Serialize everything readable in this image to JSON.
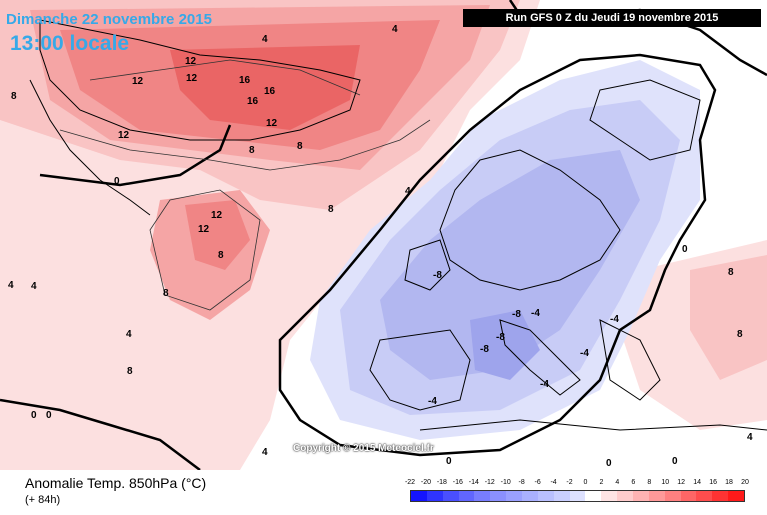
{
  "header": {
    "date_text": "Dimanche 22 novembre 2015",
    "time_text": "13:00 locale",
    "run_text": "Run GFS 0 Z du Jeudi 19 novembre 2015"
  },
  "copyright": "Copyright © 2015 Meteociel.fr",
  "footer": {
    "parameter_title": "Anomalie Temp. 850hPa (°C)",
    "forecast_hour": "(+ 84h)"
  },
  "legend": {
    "labels": [
      "-22",
      "-20",
      "-18",
      "-16",
      "-14",
      "-12",
      "-10",
      "-8",
      "-6",
      "-4",
      "-2",
      "0",
      "2",
      "4",
      "6",
      "8",
      "10",
      "12",
      "14",
      "16",
      "18",
      "20"
    ],
    "colors": [
      "#1414ff",
      "#2f34ff",
      "#4a4fff",
      "#6166ff",
      "#787dff",
      "#8b90ff",
      "#9aa0ff",
      "#a9b0ff",
      "#b9c0ff",
      "#c9cfff",
      "#dde1ff",
      "#ffffff",
      "#ffe3e3",
      "#ffcccc",
      "#ffb3b3",
      "#ff9999",
      "#ff8080",
      "#ff6666",
      "#ff4d4d",
      "#ff3333",
      "#ff1a1a"
    ]
  },
  "contour_labels": [
    {
      "text": "4"
    },
    {
      "text": "4"
    },
    {
      "text": "4"
    },
    {
      "text": "8"
    },
    {
      "text": "12"
    },
    {
      "text": "12"
    },
    {
      "text": "12"
    },
    {
      "text": "12"
    },
    {
      "text": "16"
    },
    {
      "text": "16"
    },
    {
      "text": "16"
    },
    {
      "text": "12"
    },
    {
      "text": "12"
    },
    {
      "text": "8"
    },
    {
      "text": "8"
    },
    {
      "text": "8"
    },
    {
      "text": "0"
    },
    {
      "text": "4"
    },
    {
      "text": "8"
    },
    {
      "text": "12"
    },
    {
      "text": "8"
    },
    {
      "text": "8"
    },
    {
      "text": "4"
    },
    {
      "text": "4"
    },
    {
      "text": "0"
    },
    {
      "text": "0"
    },
    {
      "text": "4"
    },
    {
      "text": "0"
    },
    {
      "text": "-8"
    },
    {
      "text": "-8"
    },
    {
      "text": "-8"
    },
    {
      "text": "-8"
    },
    {
      "text": "-4"
    },
    {
      "text": "-4"
    },
    {
      "text": "-4"
    },
    {
      "text": "-4"
    },
    {
      "text": "-4"
    },
    {
      "text": "0"
    },
    {
      "text": "0"
    },
    {
      "text": "0"
    },
    {
      "text": "8"
    },
    {
      "text": "8"
    },
    {
      "text": "4"
    }
  ]
}
